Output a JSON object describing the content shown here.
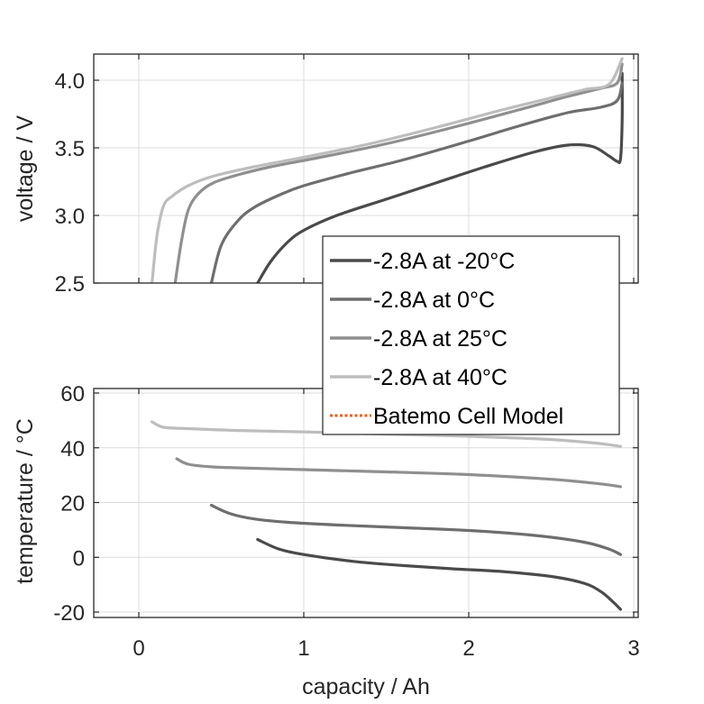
{
  "chart_data": [
    {
      "type": "line",
      "panel": "top",
      "ylabel": "voltage / V",
      "xlabel": "",
      "xlim": [
        -0.27,
        3.03
      ],
      "ylim": [
        2.5,
        4.2
      ],
      "yticks": [
        "2.5",
        "3.0",
        "3.5",
        "4.0"
      ],
      "ytick_values": [
        2.5,
        3.0,
        3.5,
        4.0
      ],
      "xtick_values": [
        0,
        1,
        2,
        3
      ],
      "grid": true,
      "series": [
        {
          "name": "-2.8A at -20°C",
          "color": "#4a4a4a",
          "x": [
            0.72,
            0.8,
            0.9,
            1.0,
            1.2,
            1.5,
            1.8,
            2.1,
            2.4,
            2.6,
            2.75,
            2.85,
            2.9,
            2.92,
            2.93,
            2.93
          ],
          "y": [
            2.5,
            2.66,
            2.8,
            2.89,
            3.0,
            3.12,
            3.24,
            3.36,
            3.47,
            3.52,
            3.51,
            3.44,
            3.4,
            3.42,
            3.7,
            4.05
          ]
        },
        {
          "name": "-2.8A at 0°C",
          "color": "#6e6e6e",
          "x": [
            0.44,
            0.5,
            0.6,
            0.7,
            0.85,
            1.0,
            1.3,
            1.6,
            2.0,
            2.3,
            2.6,
            2.8,
            2.9,
            2.93
          ],
          "y": [
            2.5,
            2.78,
            2.96,
            3.06,
            3.15,
            3.22,
            3.32,
            3.41,
            3.55,
            3.66,
            3.76,
            3.8,
            3.85,
            3.98
          ]
        },
        {
          "name": "-2.8A at 25°C",
          "color": "#8f8f8f",
          "x": [
            0.22,
            0.26,
            0.3,
            0.36,
            0.45,
            0.6,
            0.8,
            1.1,
            1.5,
            1.9,
            2.3,
            2.6,
            2.8,
            2.9,
            2.93
          ],
          "y": [
            2.5,
            2.82,
            3.04,
            3.16,
            3.24,
            3.3,
            3.36,
            3.43,
            3.53,
            3.65,
            3.78,
            3.88,
            3.94,
            3.98,
            4.12
          ]
        },
        {
          "name": "-2.8A at 40°C",
          "color": "#bdbdbd",
          "x": [
            0.08,
            0.11,
            0.15,
            0.2,
            0.3,
            0.45,
            0.7,
            1.0,
            1.4,
            1.8,
            2.2,
            2.5,
            2.7,
            2.85,
            2.93
          ],
          "y": [
            2.5,
            2.85,
            3.07,
            3.14,
            3.22,
            3.29,
            3.36,
            3.43,
            3.53,
            3.65,
            3.78,
            3.87,
            3.93,
            3.97,
            4.16
          ]
        }
      ]
    },
    {
      "type": "line",
      "panel": "bottom",
      "ylabel": "temperature / °C",
      "xlabel": "capacity / Ah",
      "xlim": [
        -0.27,
        3.03
      ],
      "ylim": [
        -22,
        62
      ],
      "xticks": [
        "0",
        "1",
        "2",
        "3"
      ],
      "xtick_values": [
        0,
        1,
        2,
        3
      ],
      "yticks": [
        "-20",
        "0",
        "20",
        "40",
        "60"
      ],
      "ytick_values": [
        -20,
        0,
        20,
        40,
        60
      ],
      "grid": true,
      "series": [
        {
          "name": "-2.8A at -20°C",
          "color": "#4a4a4a",
          "x": [
            0.72,
            0.85,
            1.0,
            1.3,
            1.6,
            1.9,
            2.2,
            2.5,
            2.7,
            2.8,
            2.87,
            2.92
          ],
          "y": [
            6.5,
            3.0,
            1.0,
            -1.5,
            -3.0,
            -4.2,
            -5.2,
            -7.0,
            -9.5,
            -12.5,
            -16.0,
            -19.0
          ]
        },
        {
          "name": "-2.8A at 0°C",
          "color": "#6e6e6e",
          "x": [
            0.44,
            0.55,
            0.7,
            0.9,
            1.2,
            1.6,
            2.0,
            2.4,
            2.7,
            2.85,
            2.92
          ],
          "y": [
            19.0,
            16.0,
            14.0,
            12.8,
            11.8,
            10.8,
            9.8,
            8.0,
            5.5,
            3.0,
            1.0
          ]
        },
        {
          "name": "-2.8A at 25°C",
          "color": "#8f8f8f",
          "x": [
            0.23,
            0.3,
            0.45,
            0.7,
            1.0,
            1.5,
            2.0,
            2.5,
            2.8,
            2.92
          ],
          "y": [
            36.0,
            34.0,
            33.0,
            32.5,
            32.0,
            31.2,
            30.2,
            28.5,
            26.8,
            25.8
          ]
        },
        {
          "name": "-2.8A at 40°C",
          "color": "#bdbdbd",
          "x": [
            0.08,
            0.15,
            0.3,
            0.6,
            1.0,
            1.5,
            2.0,
            2.5,
            2.8,
            2.92
          ],
          "y": [
            49.5,
            47.5,
            47.0,
            46.3,
            45.8,
            45.0,
            44.2,
            43.0,
            41.5,
            40.5
          ]
        }
      ]
    }
  ],
  "legend": {
    "placement": "center-right",
    "entries": [
      {
        "label": "-2.8A at -20°C",
        "color": "#4a4a4a",
        "style": "solid"
      },
      {
        "label": "-2.8A at 0°C",
        "color": "#6e6e6e",
        "style": "solid"
      },
      {
        "label": "-2.8A at 25°C",
        "color": "#8f8f8f",
        "style": "solid"
      },
      {
        "label": "-2.8A at 40°C",
        "color": "#bdbdbd",
        "style": "solid"
      },
      {
        "label": "Batemo Cell Model",
        "color": "#e8601c",
        "style": "dotted"
      }
    ]
  }
}
